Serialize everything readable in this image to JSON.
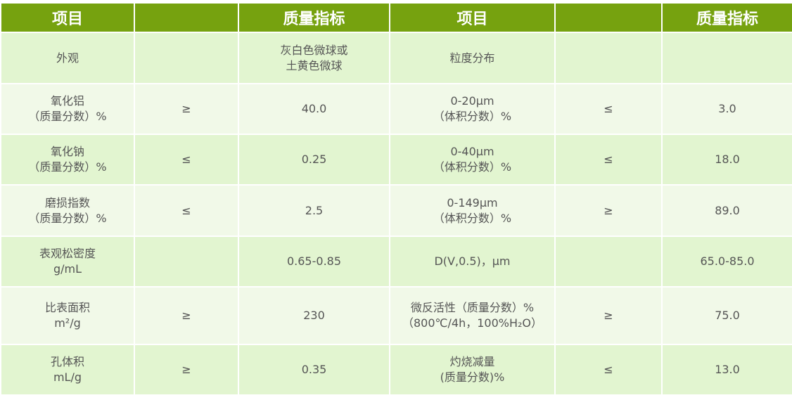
{
  "header": [
    "项目",
    "",
    "质量指标",
    "项目",
    "",
    "质量指标"
  ],
  "rows": [
    [
      "外观",
      "",
      "灰白色微球或\n土黄色微球",
      "粒度分布",
      "",
      ""
    ],
    [
      "氧化铝\n（质量分数）%",
      "≥",
      "40.0",
      "0-20μm\n（体积分数）%",
      "≤",
      "3.0"
    ],
    [
      "氧化钠\n（质量分数）%",
      "≤",
      "0.25",
      "0-40μm\n（体积分数）%",
      "≤",
      "18.0"
    ],
    [
      "磨损指数\n（质量分数）%",
      "≤",
      "2.5",
      "0-149μm\n（体积分数）%",
      "≥",
      "89.0"
    ],
    [
      "表观松密度\ng/mL",
      "",
      "0.65-0.85",
      "D(V,0.5)，μm",
      "",
      "65.0-85.0"
    ],
    [
      "比表面积\nm²/g",
      "≥",
      "230",
      "微反活性（质量分数）%\n（800℃/4h，100%H₂O）",
      "≥",
      "75.0"
    ],
    [
      "孔体积\nmL/g",
      "≥",
      "0.35",
      "灼烧减量\n(质量分数)%",
      "≤",
      "13.0"
    ]
  ],
  "colors": {
    "header_bg": "#76a20f",
    "row_odd": "#e2f5d0",
    "row_even": "#f1f9e8"
  }
}
